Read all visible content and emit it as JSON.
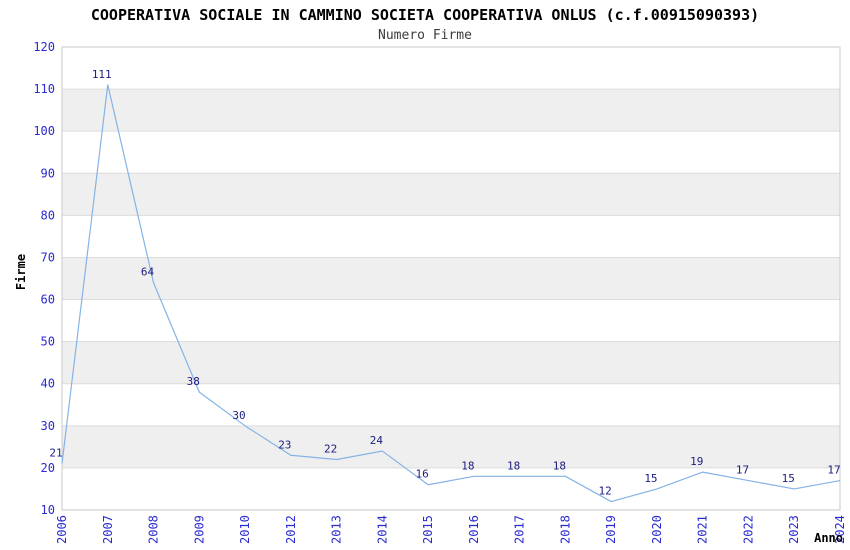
{
  "chart_data": {
    "type": "line",
    "title": "COOPERATIVA SOCIALE IN CAMMINO SOCIETA COOPERATIVA ONLUS (c.f.00915090393)",
    "subtitle": "Numero Firme",
    "xlabel": "Anno",
    "ylabel": "Firme",
    "categories": [
      "2006",
      "2007",
      "2008",
      "2009",
      "2010",
      "2012",
      "2013",
      "2014",
      "2015",
      "2016",
      "2017",
      "2018",
      "2019",
      "2020",
      "2021",
      "2022",
      "2023",
      "2024"
    ],
    "values": [
      21,
      111,
      64,
      38,
      30,
      23,
      22,
      24,
      16,
      18,
      18,
      18,
      12,
      15,
      19,
      17,
      15,
      17
    ],
    "ylim": [
      10,
      120
    ],
    "ytick_step": 10,
    "grid": "horizontal-alternating-bands",
    "legend_position": "none",
    "show_point_labels": true,
    "colors": {
      "line": "#85b3e6",
      "point_label": "#1c1c80",
      "tick_label": "#2a2ad0",
      "band": "#efefef",
      "gridline": "#dcdcdc",
      "plot_border": "#c8c8c8",
      "title": "#000000",
      "subtitle": "#3d3d3d",
      "axis_title": "#000000"
    }
  }
}
